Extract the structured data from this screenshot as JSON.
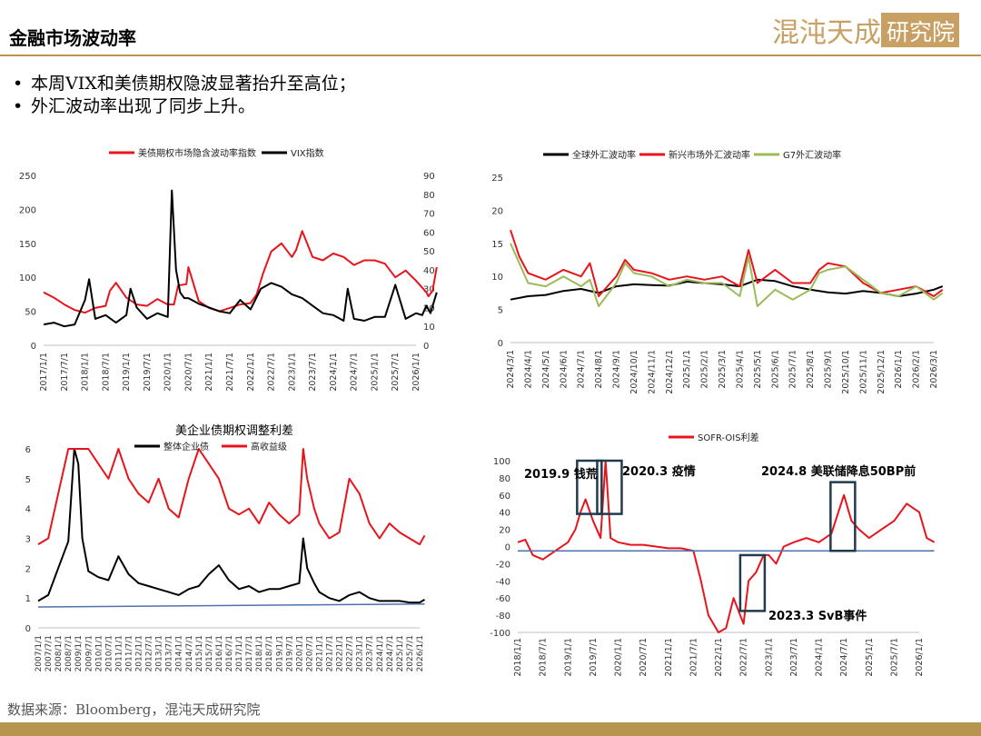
{
  "page": {
    "title": "金融市场波动率",
    "bullets": [
      "本周VIX和美债期权隐波显著抬升至高位；",
      "外汇波动率出现了同步上升。"
    ],
    "source": "数据来源：Bloomberg，混沌天成研究院",
    "logo_text": "混沌天成研究院",
    "colors": {
      "accent": "#b8954f",
      "red": "#e8141b",
      "black": "#000000",
      "olive": "#9bbb59",
      "blue": "#4f6fad"
    }
  },
  "chart_data": [
    {
      "type": "line",
      "title": "",
      "x_tick_labels": [
        "2017/1/1",
        "2017/7/1",
        "2018/1/1",
        "2018/7/1",
        "2019/1/1",
        "2019/7/1",
        "2020/1/1",
        "2020/7/1",
        "2021/1/1",
        "2021/7/1",
        "2022/1/1",
        "2022/7/1",
        "2023/1/1",
        "2023/7/1",
        "2024/1/1",
        "2024/7/1",
        "2025/1/1",
        "2025/7/1",
        "2026/1/1"
      ],
      "y_left": {
        "ticks": [
          0,
          50,
          100,
          150,
          200,
          250
        ],
        "range": [
          0,
          250
        ]
      },
      "y_right": {
        "ticks": [
          0,
          10,
          20,
          30,
          40,
          50,
          60,
          70,
          80,
          90
        ],
        "range": [
          0,
          90
        ]
      },
      "series": [
        {
          "name": "美债期权市场隐含波动率指数",
          "axis": "left",
          "color": "#e8141b",
          "x": [
            0,
            0.5,
            1,
            1.5,
            2,
            2.5,
            3,
            3.2,
            3.5,
            4,
            4.5,
            5,
            5.5,
            6,
            6.3,
            6.5,
            6.9,
            7,
            7.2,
            7.5,
            8,
            8.5,
            9,
            9.5,
            10,
            10.3,
            10.6,
            11,
            11.5,
            12,
            12.2,
            12.5,
            13,
            13.5,
            14,
            14.5,
            15,
            15.5,
            16,
            16.5,
            17,
            17.5,
            18,
            18.5,
            18.6,
            18.8,
            19
          ],
          "y": [
            78,
            70,
            60,
            52,
            48,
            55,
            58,
            80,
            92,
            70,
            60,
            58,
            68,
            60,
            60,
            88,
            90,
            115,
            95,
            65,
            55,
            50,
            55,
            60,
            62,
            75,
            105,
            138,
            150,
            130,
            140,
            168,
            130,
            125,
            135,
            130,
            118,
            125,
            125,
            120,
            100,
            110,
            95,
            78,
            72,
            80,
            115
          ]
        },
        {
          "name": "VIX指数",
          "axis": "right",
          "color": "#000000",
          "x": [
            0,
            0.5,
            1,
            1.5,
            2,
            2.2,
            2.5,
            3,
            3.5,
            4,
            4.2,
            4.5,
            5,
            5.5,
            6,
            6.2,
            6.4,
            6.6,
            6.8,
            7,
            7.5,
            8,
            8.5,
            9,
            9.5,
            10,
            10.5,
            11,
            11.5,
            12,
            12.5,
            13,
            13.5,
            14,
            14.5,
            14.7,
            15,
            15.5,
            16,
            16.5,
            17,
            17.5,
            18,
            18.3,
            18.5,
            18.7,
            19
          ],
          "y": [
            11,
            12,
            10,
            11,
            24,
            35,
            14,
            16,
            12,
            16,
            30,
            20,
            14,
            17,
            15,
            82,
            40,
            28,
            25,
            25,
            22,
            20,
            18,
            17,
            24,
            19,
            30,
            33,
            31,
            27,
            25,
            21,
            17,
            16,
            13,
            30,
            14,
            13,
            15,
            15,
            32,
            14,
            17,
            16,
            21,
            17,
            28
          ]
        }
      ]
    },
    {
      "type": "line",
      "title": "",
      "x_tick_labels": [
        "2024/3/1",
        "2024/4/1",
        "2024/5/1",
        "2024/6/1",
        "2024/7/1",
        "2024/8/1",
        "2024/9/1",
        "2024/10/1",
        "2024/11/1",
        "2024/12/1",
        "2025/1/1",
        "2025/2/1",
        "2025/3/1",
        "2025/4/1",
        "2025/5/1",
        "2025/6/1",
        "2025/7/1",
        "2025/8/1",
        "2025/9/1",
        "2025/10/1",
        "2025/11/1",
        "2025/12/1",
        "2026/1/1",
        "2026/2/1",
        "2026/3/1"
      ],
      "y": {
        "ticks": [
          0,
          5,
          10,
          15,
          20,
          25
        ],
        "range": [
          0,
          25
        ]
      },
      "series": [
        {
          "name": "全球外汇波动率",
          "color": "#000000",
          "x": [
            0,
            1,
            2,
            3,
            4,
            5,
            6,
            7,
            8,
            9,
            10,
            11,
            12,
            13,
            14,
            15,
            16,
            17,
            18,
            19,
            20,
            21,
            22,
            23,
            24,
            24.5
          ],
          "y": [
            6.5,
            7.0,
            7.2,
            7.8,
            8.1,
            7.5,
            8.5,
            8.8,
            8.7,
            8.6,
            9.2,
            9.0,
            8.8,
            8.5,
            9.5,
            9.3,
            8.5,
            8.0,
            7.6,
            7.4,
            7.8,
            7.5,
            7.0,
            7.4,
            8.0,
            8.5
          ]
        },
        {
          "name": "新兴市场外汇波动率",
          "color": "#e8141b",
          "x": [
            0,
            0.5,
            1,
            2,
            3,
            4,
            4.5,
            5,
            6,
            6.5,
            7,
            8,
            9,
            10,
            11,
            12,
            13,
            13.5,
            14,
            15,
            16,
            17,
            17.5,
            18,
            19,
            20,
            21,
            22,
            23,
            24,
            24.5
          ],
          "y": [
            17,
            13,
            10.5,
            9.5,
            11,
            10,
            12,
            7,
            10,
            12.5,
            11,
            10.5,
            9.5,
            10,
            9.5,
            10,
            8.5,
            14,
            9,
            11,
            9,
            9,
            11,
            12,
            11.5,
            9,
            7.5,
            8,
            8.5,
            7,
            8
          ]
        },
        {
          "name": "G7外汇波动率",
          "color": "#9bbb59",
          "x": [
            0,
            0.5,
            1,
            2,
            3,
            4,
            4.5,
            5,
            6,
            6.5,
            7,
            8,
            9,
            10,
            11,
            12,
            13,
            13.5,
            14,
            15,
            16,
            17,
            17.5,
            18,
            19,
            20,
            21,
            22,
            23,
            24,
            24.5
          ],
          "y": [
            15,
            12,
            9,
            8.5,
            10,
            8.5,
            9.5,
            5.5,
            9,
            12,
            10.5,
            10,
            8.5,
            9.5,
            9,
            9,
            7,
            13,
            5.5,
            8,
            6.5,
            8,
            10.5,
            11,
            11.5,
            9.5,
            7.5,
            7,
            8.5,
            6.5,
            7.5
          ]
        }
      ]
    },
    {
      "type": "line",
      "title": "美企业债期权调整利差",
      "x_tick_labels": [
        "2007/1/1",
        "2007/7/1",
        "2008/1/1",
        "2008/7/1",
        "2009/1/1",
        "2009/7/1",
        "2010/1/1",
        "2010/7/1",
        "2011/1/1",
        "2011/7/1",
        "2012/1/1",
        "2012/7/1",
        "2013/1/1",
        "2013/7/1",
        "2014/1/1",
        "2014/7/1",
        "2015/1/1",
        "2015/7/1",
        "2016/1/1",
        "2016/7/1",
        "2017/1/1",
        "2017/7/1",
        "2018/1/1",
        "2018/7/1",
        "2019/1/1",
        "2019/7/1",
        "2020/1/1",
        "2020/7/1",
        "2021/1/1",
        "2021/7/1",
        "2022/1/1",
        "2022/7/1",
        "2023/1/1",
        "2023/7/1",
        "2024/1/1",
        "2024/7/1",
        "2025/1/1",
        "2025/7/1",
        "2026/1/1"
      ],
      "y": {
        "ticks": [
          0,
          1,
          2,
          3,
          4,
          5,
          6
        ],
        "range": [
          0,
          6
        ]
      },
      "series": [
        {
          "name": "整体企业债",
          "color": "#000000",
          "x": [
            0,
            1,
            2,
            3,
            3.6,
            4,
            4.4,
            5,
            6,
            7,
            8,
            9,
            10,
            11,
            12,
            13,
            14,
            15,
            16,
            17,
            18,
            19,
            20,
            21,
            22,
            23,
            24,
            25,
            26,
            26.4,
            26.8,
            27.5,
            28,
            29,
            30,
            31,
            32,
            33,
            34,
            35,
            36,
            37,
            38,
            38.5
          ],
          "y": [
            0.9,
            1.1,
            2.0,
            2.9,
            6.0,
            5.5,
            3.0,
            1.9,
            1.7,
            1.6,
            2.4,
            1.8,
            1.5,
            1.4,
            1.3,
            1.2,
            1.1,
            1.3,
            1.4,
            1.8,
            2.1,
            1.6,
            1.3,
            1.4,
            1.2,
            1.3,
            1.3,
            1.4,
            1.5,
            3.0,
            2.0,
            1.5,
            1.2,
            1.0,
            0.9,
            1.1,
            1.2,
            1.0,
            0.9,
            0.9,
            0.9,
            0.85,
            0.85,
            0.95
          ]
        },
        {
          "name": "高收益级",
          "color": "#e8141b",
          "x": [
            0,
            1,
            2,
            3,
            3.6,
            4,
            4.4,
            5,
            6,
            7,
            8,
            9,
            10,
            11,
            12,
            13,
            14,
            15,
            16,
            17,
            18,
            19,
            20,
            21,
            22,
            23,
            24,
            25,
            26,
            26.4,
            26.8,
            27.5,
            28,
            29,
            30,
            31,
            32,
            33,
            34,
            35,
            36,
            37,
            38,
            38.5
          ],
          "y": [
            2.8,
            3.0,
            4.5,
            6.0,
            6.0,
            6.0,
            6.0,
            6.0,
            5.5,
            5.0,
            6.0,
            5.0,
            4.5,
            4.2,
            5.0,
            4.0,
            3.7,
            5.0,
            6.0,
            5.5,
            5.0,
            4.0,
            3.8,
            4.0,
            3.5,
            4.2,
            3.8,
            3.5,
            3.8,
            6.0,
            5.0,
            4.0,
            3.5,
            3.0,
            3.2,
            5.0,
            4.5,
            3.5,
            3.0,
            3.5,
            3.2,
            3.0,
            2.8,
            3.1
          ]
        },
        {
          "name": "",
          "color": "#4f6fad",
          "x": [
            0,
            38.5
          ],
          "y": [
            0.7,
            0.8
          ]
        }
      ]
    },
    {
      "type": "line",
      "title": "",
      "x_tick_labels": [
        "2018/1/1",
        "2018/7/1",
        "2019/1/1",
        "2019/7/1",
        "2020/1/1",
        "2020/7/1",
        "2021/1/1",
        "2021/7/1",
        "2022/1/1",
        "2022/7/1",
        "2023/1/1",
        "2023/7/1",
        "2024/1/1",
        "2024/7/1",
        "2025/1/1",
        "2025/7/1",
        "2026/1/1"
      ],
      "y": {
        "ticks": [
          -100,
          -80,
          -60,
          -40,
          -20,
          0,
          20,
          40,
          60,
          80,
          100
        ],
        "range": [
          -100,
          100
        ]
      },
      "series": [
        {
          "name": "SOFR-OIS利差",
          "color": "#e8141b",
          "x": [
            0,
            0.3,
            0.6,
            1,
            1.5,
            2,
            2.3,
            2.5,
            2.7,
            3,
            3.3,
            3.5,
            3.7,
            4,
            4.5,
            5,
            5.5,
            6,
            6.5,
            7,
            7.3,
            7.6,
            8,
            8.3,
            8.6,
            9,
            9.2,
            9.5,
            9.8,
            10,
            10.3,
            10.6,
            11,
            11.5,
            12,
            12.5,
            13,
            13.3,
            13.6,
            14,
            14.5,
            15,
            15.5,
            16,
            16.3,
            16.6
          ],
          "y": [
            5,
            8,
            -10,
            -15,
            -5,
            5,
            20,
            40,
            55,
            30,
            10,
            100,
            10,
            5,
            2,
            2,
            0,
            -2,
            -2,
            -5,
            -40,
            -80,
            -100,
            -95,
            -60,
            -90,
            -40,
            -30,
            -10,
            -10,
            -20,
            0,
            5,
            10,
            5,
            15,
            60,
            30,
            20,
            10,
            20,
            30,
            50,
            40,
            10,
            5
          ]
        },
        {
          "name": "",
          "color": "#4f6fad",
          "x": [
            0,
            16.6
          ],
          "y": [
            -5,
            -5
          ]
        }
      ],
      "annotations": [
        "2019.9 钱荒",
        "2020.3 疫情",
        "2024.8 美联储降息50BP前",
        "2023.3 SvB事件"
      ]
    }
  ]
}
